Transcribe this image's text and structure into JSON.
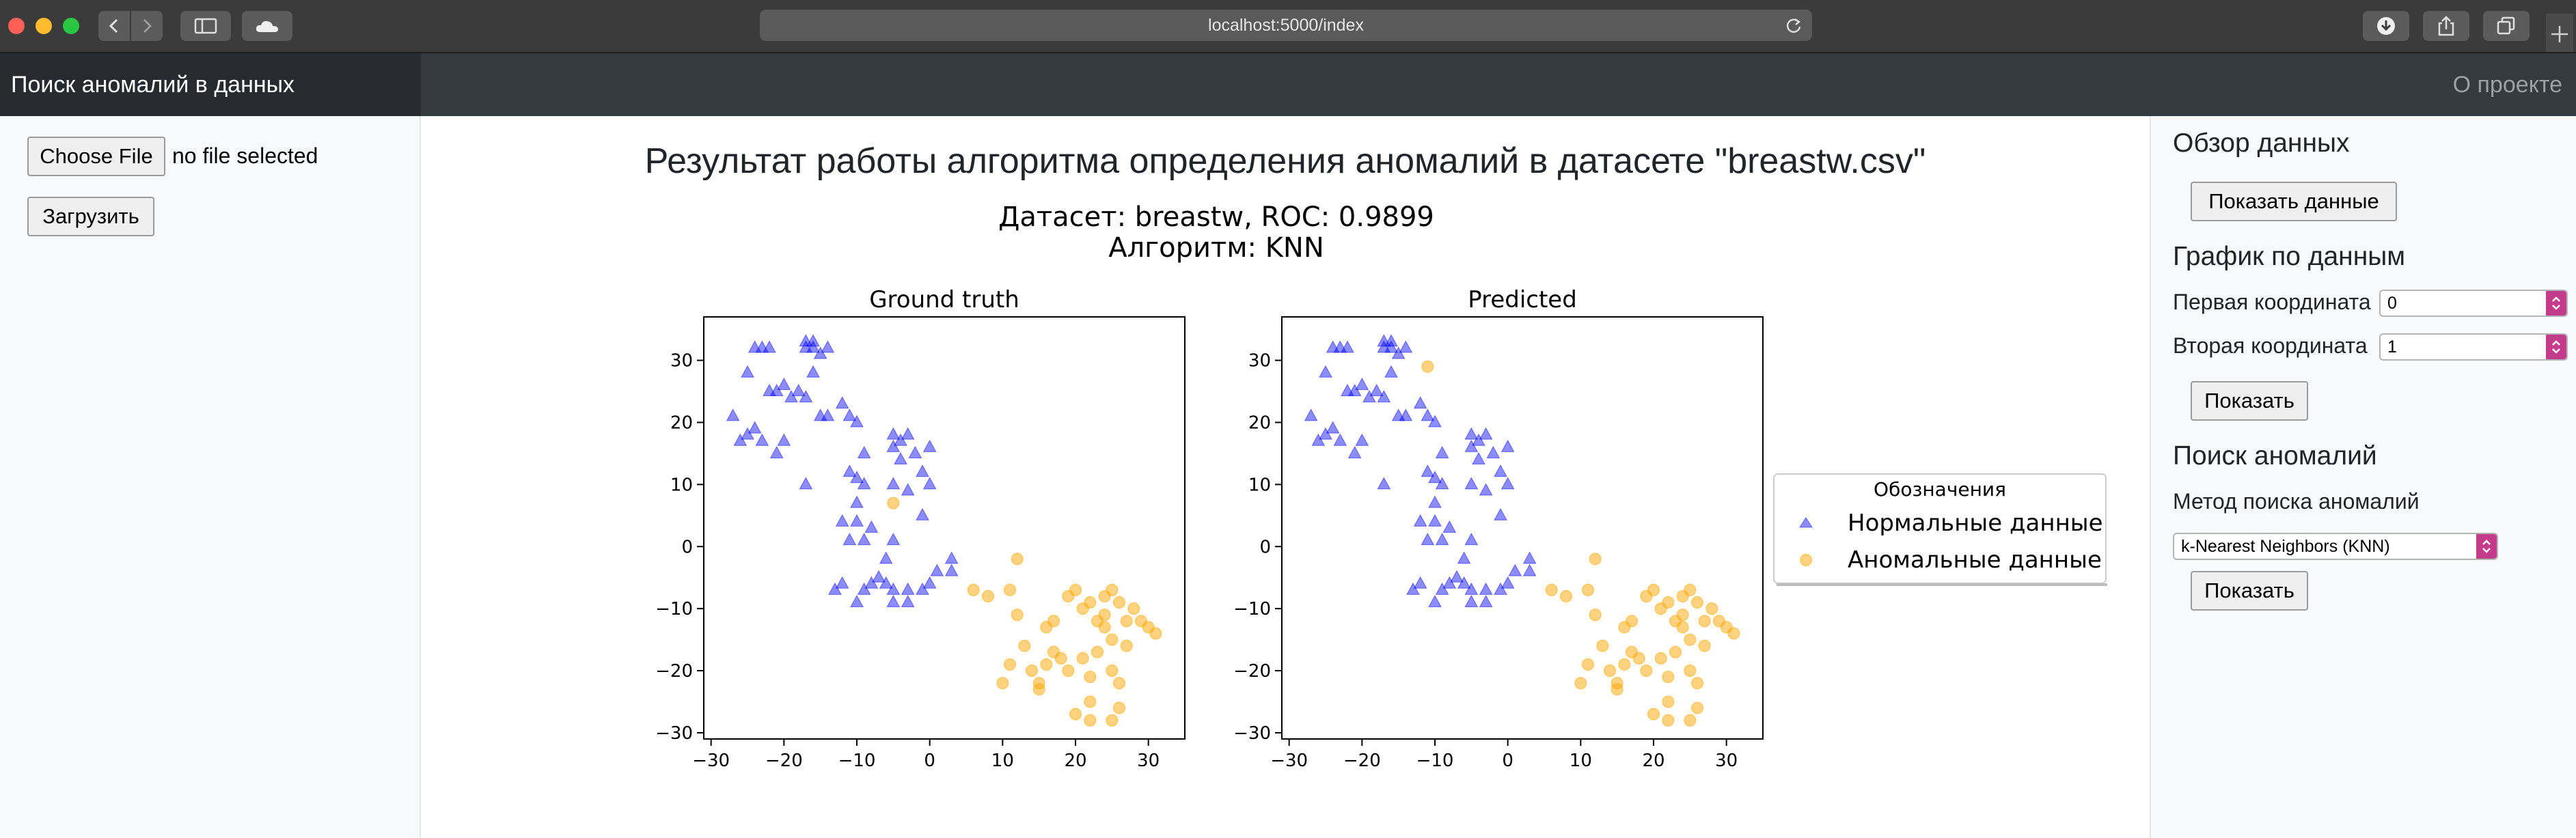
{
  "browser": {
    "url": "localhost:5000/index",
    "colors": {
      "close": "#ff5f57",
      "minimize": "#febc2e",
      "zoom": "#28c840"
    },
    "icons": [
      "back-icon",
      "forward-icon",
      "sidebar-icon",
      "cloud-icon",
      "reload-icon",
      "download-icon",
      "share-icon",
      "tabs-icon",
      "new-tab-icon"
    ]
  },
  "navbar": {
    "brand": "Поиск аномалий в данных",
    "about": "О проекте"
  },
  "left": {
    "file_button": "Choose File",
    "file_status": "no file selected",
    "upload_button": "Загрузить"
  },
  "main": {
    "title": "Результат работы алгоритма определения аномалий в датасете \"breastw.csv\""
  },
  "right": {
    "overview_heading": "Обзор данных",
    "show_data_button": "Показать данные",
    "plot_heading": "График по данным",
    "first_coord_label": "Первая координата",
    "first_coord_value": "0",
    "second_coord_label": "Вторая координата",
    "second_coord_value": "1",
    "plot_show_button": "Показать",
    "anomaly_heading": "Поиск аномалий",
    "method_label": "Метод поиска аномалий",
    "method_value": "k-Nearest Neighbors (KNN)",
    "anomaly_show_button": "Показать",
    "accent_color": "#c53b8c"
  },
  "chart_data": {
    "type": "scatter",
    "suptitle": "Датасет: breastw, ROC: 0.9899",
    "suptitle2": "Алгоритм: KNN",
    "legend": {
      "title": "Обозначения",
      "placement": "right",
      "entries": [
        {
          "name": "Нормальные данные",
          "marker": "triangle",
          "color": "#0000ff"
        },
        {
          "name": "Аномальные данные",
          "marker": "circle",
          "color": "#ffa500"
        }
      ]
    },
    "xlim": [
      -31,
      35
    ],
    "ylim": [
      -31,
      37
    ],
    "xticks": [
      "−30",
      "−20",
      "−10",
      "0",
      "10",
      "20",
      "30"
    ],
    "yticks": [
      "30",
      "20",
      "10",
      "0",
      "−10",
      "−20",
      "−30"
    ],
    "panels": [
      {
        "title": "Ground truth",
        "normal": [
          [
            -26,
            17
          ],
          [
            -25,
            18
          ],
          [
            -24,
            19
          ],
          [
            -27,
            21
          ],
          [
            -23,
            17
          ],
          [
            -25,
            28
          ],
          [
            -23,
            32
          ],
          [
            -24,
            32
          ],
          [
            -22,
            32
          ],
          [
            -20,
            26
          ],
          [
            -21,
            25
          ],
          [
            -22,
            25
          ],
          [
            -18,
            25
          ],
          [
            -19,
            24
          ],
          [
            -21,
            15
          ],
          [
            -20,
            17
          ],
          [
            -17,
            32
          ],
          [
            -17,
            33
          ],
          [
            -16,
            33
          ],
          [
            -16,
            32
          ],
          [
            -15,
            31
          ],
          [
            -14,
            32
          ],
          [
            -16,
            28
          ],
          [
            -17,
            24
          ],
          [
            -15,
            21
          ],
          [
            -14,
            21
          ],
          [
            -17,
            10
          ],
          [
            -11,
            21
          ],
          [
            -10,
            20
          ],
          [
            -12,
            23
          ],
          [
            -9,
            15
          ],
          [
            -10,
            11
          ],
          [
            -11,
            12
          ],
          [
            -9,
            10
          ],
          [
            -10,
            7
          ],
          [
            -10,
            4
          ],
          [
            -5,
            18
          ],
          [
            -4,
            17
          ],
          [
            -3,
            18
          ],
          [
            -4,
            14
          ],
          [
            -5,
            16
          ],
          [
            -2,
            15
          ],
          [
            -1,
            12
          ],
          [
            0,
            10
          ],
          [
            0,
            16
          ],
          [
            -1,
            5
          ],
          [
            -5,
            10
          ],
          [
            -3,
            9
          ],
          [
            -11,
            1
          ],
          [
            -12,
            4
          ],
          [
            -9,
            1
          ],
          [
            -8,
            3
          ],
          [
            -6,
            -2
          ],
          [
            -5,
            1
          ],
          [
            -12,
            -6
          ],
          [
            -13,
            -7
          ],
          [
            -10,
            -9
          ],
          [
            -9,
            -7
          ],
          [
            -8,
            -6
          ],
          [
            -7,
            -5
          ],
          [
            -6,
            -6
          ],
          [
            -5,
            -9
          ],
          [
            -3,
            -9
          ],
          [
            -3,
            -7
          ],
          [
            -1,
            -7
          ],
          [
            0,
            -6
          ],
          [
            1,
            -4
          ],
          [
            3,
            -2
          ],
          [
            3,
            -4
          ],
          [
            -5,
            -7
          ]
        ],
        "anomaly": [
          [
            -5,
            7
          ],
          [
            6,
            -7
          ],
          [
            8,
            -8
          ],
          [
            11,
            -7
          ],
          [
            12,
            -2
          ],
          [
            12,
            -11
          ],
          [
            13,
            -16
          ],
          [
            11,
            -19
          ],
          [
            10,
            -22
          ],
          [
            14,
            -20
          ],
          [
            15,
            -22
          ],
          [
            15,
            -23
          ],
          [
            16,
            -19
          ],
          [
            17,
            -17
          ],
          [
            17,
            -12
          ],
          [
            18,
            -18
          ],
          [
            19,
            -20
          ],
          [
            16,
            -13
          ],
          [
            19,
            -8
          ],
          [
            20,
            -7
          ],
          [
            21,
            -10
          ],
          [
            21,
            -18
          ],
          [
            22,
            -21
          ],
          [
            22,
            -25
          ],
          [
            23,
            -12
          ],
          [
            23,
            -17
          ],
          [
            24,
            -8
          ],
          [
            24,
            -11
          ],
          [
            24,
            -13
          ],
          [
            25,
            -7
          ],
          [
            25,
            -15
          ],
          [
            25,
            -20
          ],
          [
            25,
            -28
          ],
          [
            26,
            -22
          ],
          [
            26,
            -26
          ],
          [
            27,
            -12
          ],
          [
            27,
            -16
          ],
          [
            28,
            -10
          ],
          [
            29,
            -12
          ],
          [
            30,
            -13
          ],
          [
            31,
            -14
          ],
          [
            22,
            -28
          ],
          [
            20,
            -27
          ],
          [
            22,
            -9
          ],
          [
            26,
            -9
          ]
        ]
      },
      {
        "title": "Predicted",
        "normal": [
          [
            -26,
            17
          ],
          [
            -25,
            18
          ],
          [
            -24,
            19
          ],
          [
            -27,
            21
          ],
          [
            -23,
            17
          ],
          [
            -25,
            28
          ],
          [
            -23,
            32
          ],
          [
            -24,
            32
          ],
          [
            -22,
            32
          ],
          [
            -20,
            26
          ],
          [
            -21,
            25
          ],
          [
            -22,
            25
          ],
          [
            -18,
            25
          ],
          [
            -19,
            24
          ],
          [
            -21,
            15
          ],
          [
            -20,
            17
          ],
          [
            -17,
            32
          ],
          [
            -17,
            33
          ],
          [
            -16,
            33
          ],
          [
            -16,
            32
          ],
          [
            -15,
            31
          ],
          [
            -14,
            32
          ],
          [
            -16,
            28
          ],
          [
            -17,
            24
          ],
          [
            -15,
            21
          ],
          [
            -14,
            21
          ],
          [
            -17,
            10
          ],
          [
            -11,
            21
          ],
          [
            -10,
            20
          ],
          [
            -12,
            23
          ],
          [
            -9,
            15
          ],
          [
            -10,
            11
          ],
          [
            -11,
            12
          ],
          [
            -9,
            10
          ],
          [
            -10,
            7
          ],
          [
            -10,
            4
          ],
          [
            -5,
            18
          ],
          [
            -4,
            17
          ],
          [
            -3,
            18
          ],
          [
            -4,
            14
          ],
          [
            -5,
            16
          ],
          [
            -2,
            15
          ],
          [
            -1,
            12
          ],
          [
            0,
            10
          ],
          [
            0,
            16
          ],
          [
            -1,
            5
          ],
          [
            -5,
            10
          ],
          [
            -3,
            9
          ],
          [
            -11,
            1
          ],
          [
            -12,
            4
          ],
          [
            -9,
            1
          ],
          [
            -8,
            3
          ],
          [
            -6,
            -2
          ],
          [
            -5,
            1
          ],
          [
            -12,
            -6
          ],
          [
            -13,
            -7
          ],
          [
            -10,
            -9
          ],
          [
            -9,
            -7
          ],
          [
            -8,
            -6
          ],
          [
            -7,
            -5
          ],
          [
            -6,
            -6
          ],
          [
            -5,
            -9
          ],
          [
            -3,
            -9
          ],
          [
            -3,
            -7
          ],
          [
            -1,
            -7
          ],
          [
            0,
            -6
          ],
          [
            1,
            -4
          ],
          [
            3,
            -2
          ],
          [
            3,
            -4
          ],
          [
            -5,
            -7
          ]
        ],
        "anomaly": [
          [
            -11,
            29
          ],
          [
            6,
            -7
          ],
          [
            8,
            -8
          ],
          [
            11,
            -7
          ],
          [
            12,
            -2
          ],
          [
            12,
            -11
          ],
          [
            13,
            -16
          ],
          [
            11,
            -19
          ],
          [
            10,
            -22
          ],
          [
            14,
            -20
          ],
          [
            15,
            -22
          ],
          [
            15,
            -23
          ],
          [
            16,
            -19
          ],
          [
            17,
            -17
          ],
          [
            17,
            -12
          ],
          [
            18,
            -18
          ],
          [
            19,
            -20
          ],
          [
            16,
            -13
          ],
          [
            19,
            -8
          ],
          [
            20,
            -7
          ],
          [
            21,
            -10
          ],
          [
            21,
            -18
          ],
          [
            22,
            -21
          ],
          [
            22,
            -25
          ],
          [
            23,
            -12
          ],
          [
            23,
            -17
          ],
          [
            24,
            -8
          ],
          [
            24,
            -11
          ],
          [
            24,
            -13
          ],
          [
            25,
            -7
          ],
          [
            25,
            -15
          ],
          [
            25,
            -20
          ],
          [
            25,
            -28
          ],
          [
            26,
            -22
          ],
          [
            26,
            -26
          ],
          [
            27,
            -12
          ],
          [
            27,
            -16
          ],
          [
            28,
            -10
          ],
          [
            29,
            -12
          ],
          [
            30,
            -13
          ],
          [
            31,
            -14
          ],
          [
            22,
            -28
          ],
          [
            20,
            -27
          ],
          [
            22,
            -9
          ],
          [
            26,
            -9
          ]
        ]
      }
    ]
  }
}
